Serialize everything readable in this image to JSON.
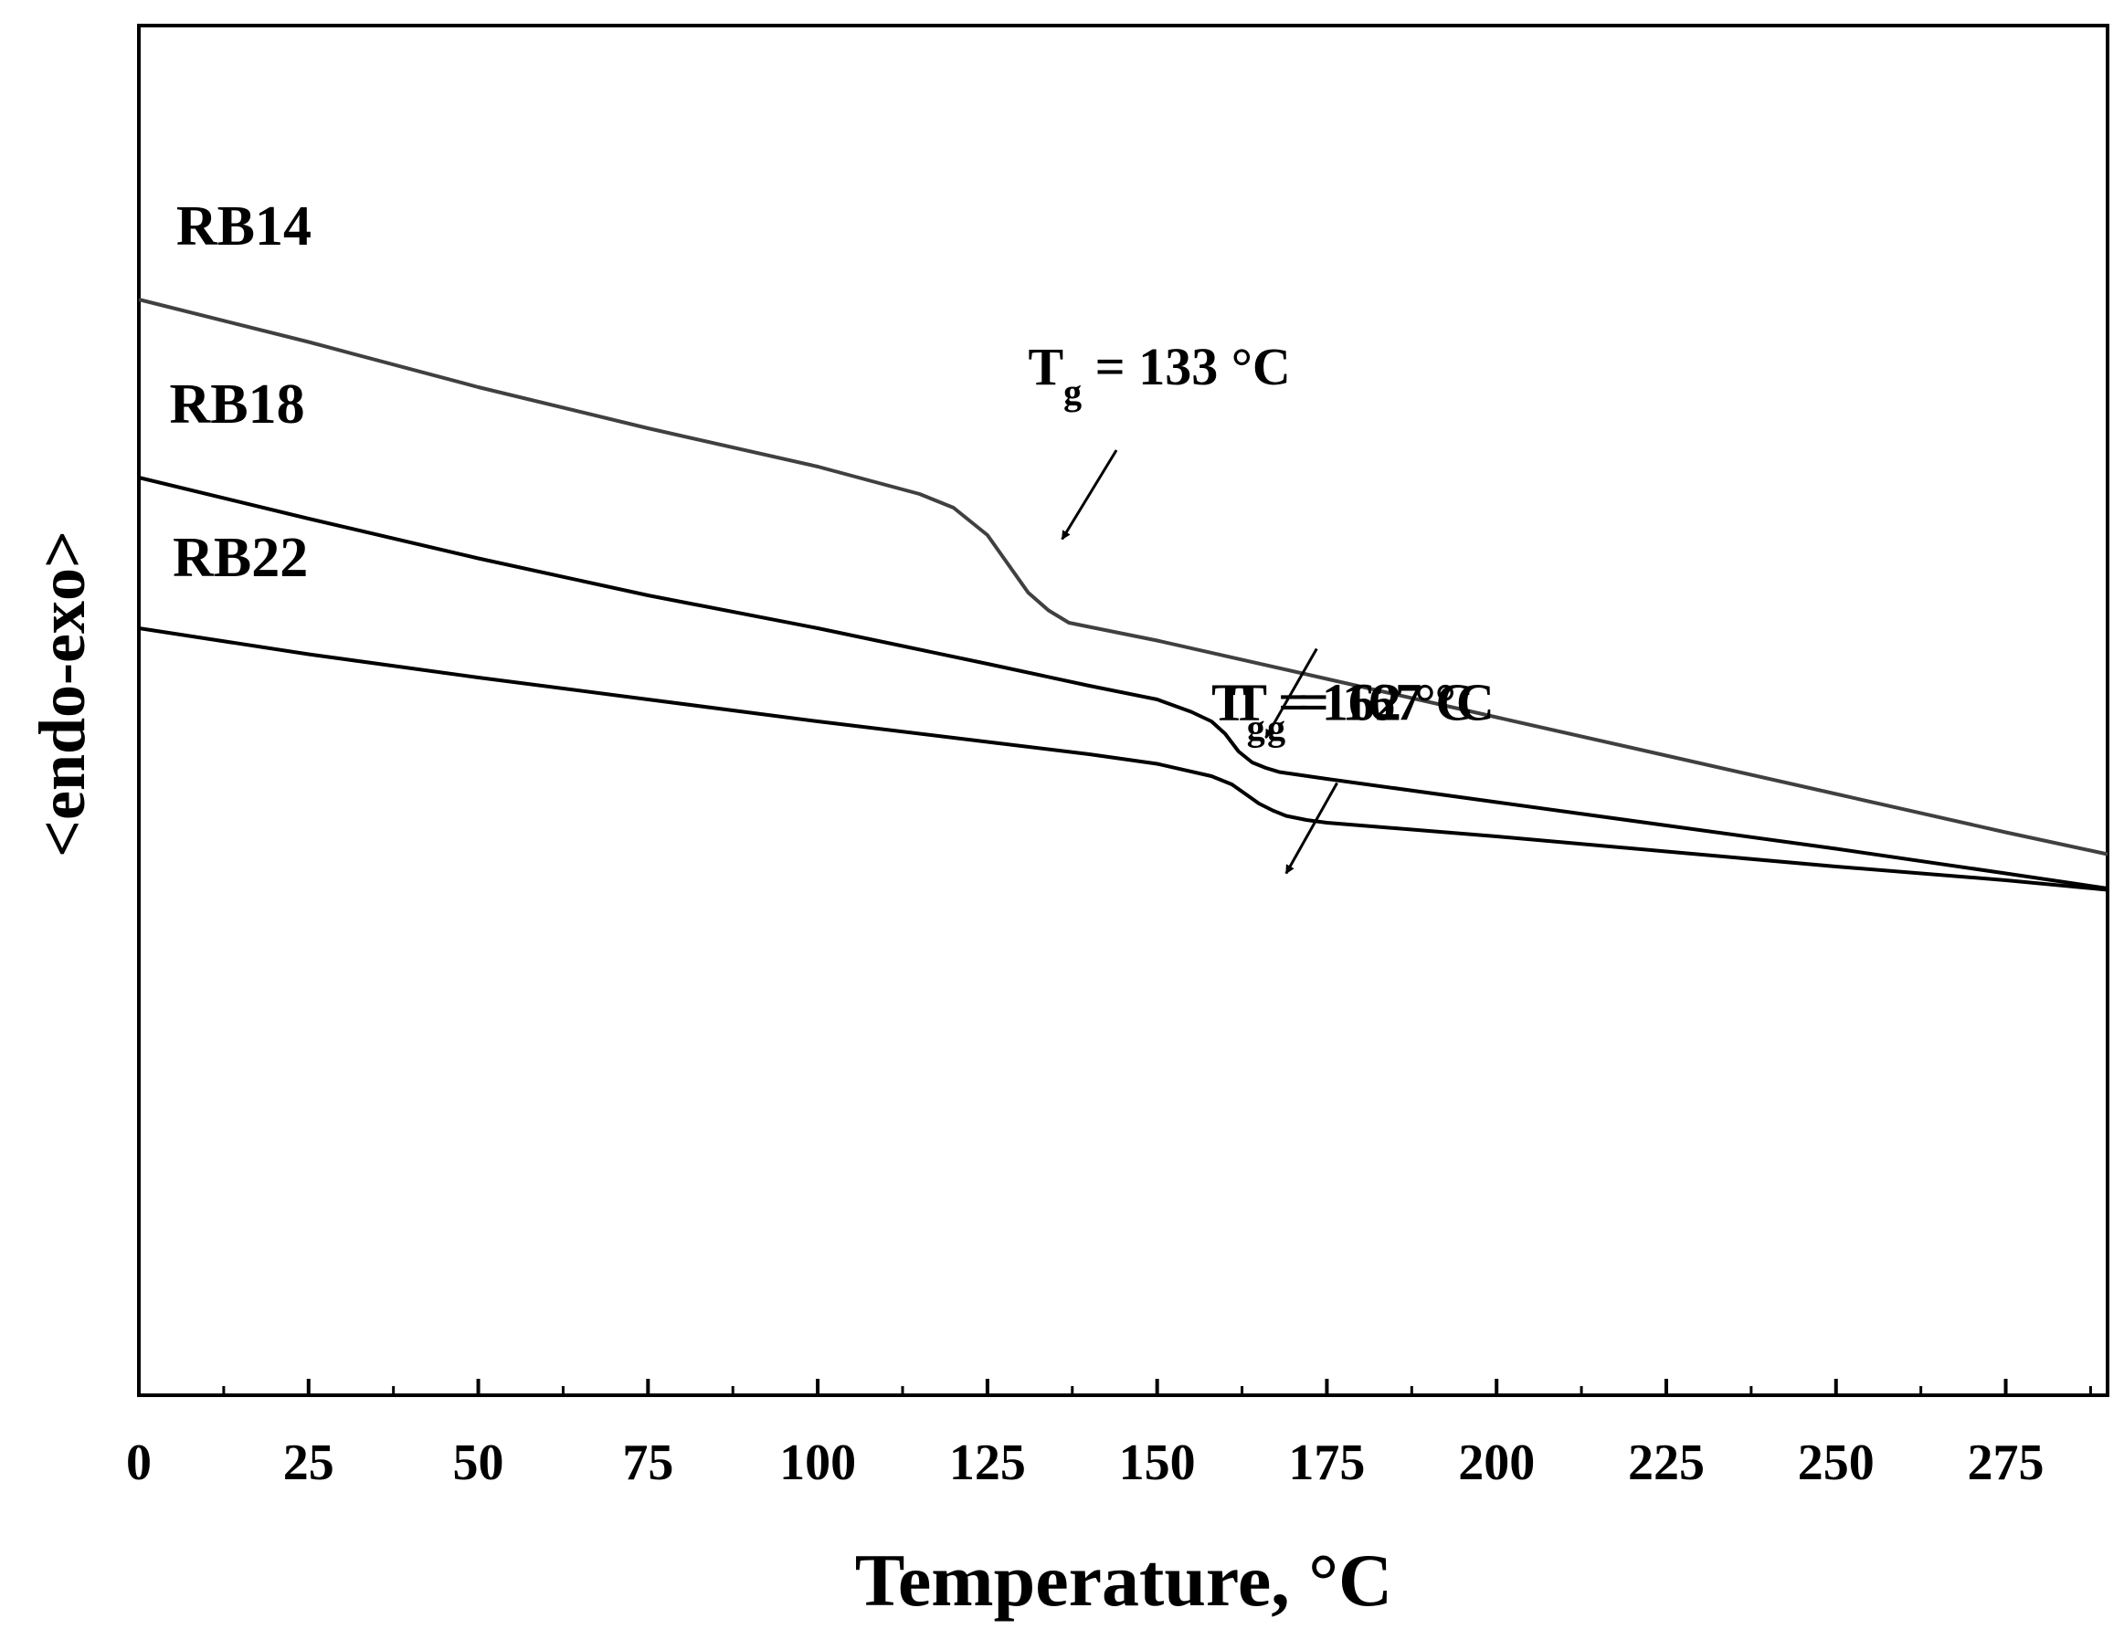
{
  "chart_data": {
    "type": "line",
    "title": "",
    "xlabel": "Temperature, °C",
    "ylabel": "<endo-exo>",
    "xlim": [
      0,
      290
    ],
    "ylim": [
      0,
      100
    ],
    "xticks": [
      0,
      25,
      50,
      75,
      100,
      125,
      150,
      175,
      200,
      225,
      250,
      275
    ],
    "xtick_labels": [
      "0",
      "25",
      "50",
      "75",
      "100",
      "125",
      "150",
      "175",
      "200",
      "225",
      "250",
      "275"
    ],
    "y_tick_labels_shown": false,
    "grid": false,
    "legend": "none",
    "series": [
      {
        "name": "RB14",
        "color": "#404040",
        "x": [
          0,
          25,
          50,
          75,
          100,
          115,
          120,
          125,
          128,
          131,
          134,
          137,
          140,
          150,
          175,
          200,
          225,
          250,
          275,
          290
        ],
        "y": [
          80.0,
          76.9,
          73.6,
          70.6,
          67.8,
          65.8,
          64.8,
          62.8,
          60.7,
          58.6,
          57.3,
          56.4,
          56.1,
          55.1,
          52.3,
          49.5,
          46.7,
          43.9,
          41.1,
          39.5
        ]
      },
      {
        "name": "RB18",
        "color": "#000000",
        "x": [
          0,
          25,
          50,
          75,
          100,
          125,
          140,
          150,
          155,
          158,
          160,
          162,
          164,
          166,
          168,
          175,
          200,
          225,
          250,
          275,
          290
        ],
        "y": [
          67.0,
          64.0,
          61.1,
          58.4,
          56.0,
          53.4,
          51.8,
          50.8,
          49.9,
          49.2,
          48.3,
          47.0,
          46.2,
          45.8,
          45.5,
          45.0,
          43.3,
          41.6,
          39.9,
          38.1,
          37.0
        ]
      },
      {
        "name": "RB22",
        "color": "#000000",
        "x": [
          0,
          25,
          50,
          75,
          100,
          125,
          140,
          150,
          158,
          161,
          163,
          165,
          167,
          169,
          172,
          175,
          200,
          225,
          250,
          275,
          290
        ],
        "y": [
          56.0,
          54.1,
          52.4,
          50.8,
          49.2,
          47.7,
          46.8,
          46.1,
          45.2,
          44.6,
          43.9,
          43.2,
          42.7,
          42.3,
          42.0,
          41.8,
          40.8,
          39.7,
          38.6,
          37.6,
          36.9
        ]
      }
    ],
    "annotations": [
      {
        "series": "RB14",
        "prefix": "T",
        "sub": "g",
        "text": " = 133 °C",
        "text_x": 131.0,
        "text_y": 73.8,
        "arrow_from": [
          144.0,
          69.0
        ],
        "arrow_to": [
          136.0,
          62.5
        ]
      },
      {
        "series": "RB18",
        "prefix": "T",
        "sub": "g",
        "text": " = 162 °C",
        "text_x": 158.0,
        "text_y": 49.3,
        "arrow_from": [
          173.5,
          54.5
        ],
        "arrow_to": [
          166.0,
          48.0
        ]
      },
      {
        "series": "RB22",
        "prefix": "T",
        "sub": "g",
        "text": " = 167 °C",
        "text_x": 161.0,
        "text_y": 49.3,
        "arrow_from": [
          176.5,
          44.7
        ],
        "arrow_to": [
          169.0,
          38.1
        ]
      }
    ],
    "series_labels": [
      {
        "text": "RB14",
        "x": 5.5,
        "y": 84.0
      },
      {
        "text": "RB18",
        "x": 4.5,
        "y": 71.0
      },
      {
        "text": "RB22",
        "x": 5.0,
        "y": 59.8
      }
    ]
  }
}
